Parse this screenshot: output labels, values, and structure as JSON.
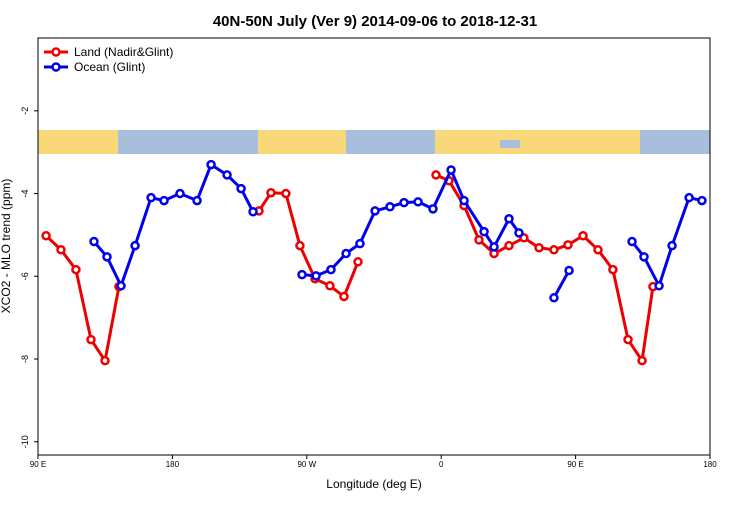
{
  "chart_data": {
    "type": "line",
    "title": "40N-50N July (Ver 9)   2014-09-06 to 2018-12-31",
    "x_label": "Longitude (deg E)",
    "y_label": "XCO2 - MLO trend (ppm)",
    "xlim": [
      90,
      540
    ],
    "xticks": [
      {
        "value": 90,
        "label": "90 E"
      },
      {
        "value": 180,
        "label": "180"
      },
      {
        "value": 270,
        "label": "90 W"
      },
      {
        "value": 360,
        "label": "0"
      },
      {
        "value": 450,
        "label": "90 E"
      },
      {
        "value": 540,
        "label": "180"
      }
    ],
    "ylim": [
      -10.32,
      -0.24
    ],
    "yticks": [
      -2,
      -4,
      -6,
      -8,
      -10
    ],
    "legend": "top-left",
    "series": [
      {
        "name": "Land (Nadir&Glint)",
        "color": "#ee0000",
        "x": [
          95.4,
          105.4,
          115.4,
          125.5,
          134.9,
          144.2,
          null,
          238,
          246,
          256,
          265.4,
          275.5,
          285.5,
          294.9,
          304.3,
          null,
          356.5,
          365.2,
          375.3,
          385.3,
          395.4,
          405.4,
          415.4,
          425.5,
          435.5,
          444.9,
          455,
          465,
          475,
          485.1,
          494.5,
          501.8
        ],
        "values": [
          -5.02,
          -5.36,
          -5.84,
          -7.53,
          -8.04,
          -6.25,
          null,
          -4.42,
          -3.98,
          -4.0,
          -5.26,
          -6.06,
          -6.23,
          -6.49,
          -5.65,
          null,
          -3.55,
          -3.69,
          -4.29,
          -5.12,
          -5.45,
          -5.26,
          -5.07,
          -5.31,
          -5.36,
          -5.24,
          -5.02,
          -5.36,
          -5.84,
          -7.53,
          -8.04,
          -6.25
        ]
      },
      {
        "name": "Ocean (Glint)",
        "color": "#0000ee",
        "x": [
          127.5,
          136.2,
          145.6,
          155,
          165.7,
          174.4,
          185.1,
          196.5,
          205.9,
          216.6,
          226,
          234,
          null,
          266.8,
          276.2,
          286.2,
          296.3,
          305.6,
          315.7,
          325.7,
          335.1,
          344.5,
          354.5,
          366.6,
          375.3,
          388.7,
          395.4,
          405.4,
          412.1,
          null,
          435.5,
          445.6,
          null,
          487.8,
          495.8,
          505.9,
          514.6,
          526,
          534.6
        ],
        "values": [
          -5.16,
          -5.53,
          -6.23,
          -5.26,
          -4.1,
          -4.17,
          -4.0,
          -4.17,
          -3.3,
          -3.55,
          -3.88,
          -4.44,
          null,
          -5.96,
          -5.99,
          -5.84,
          -5.45,
          -5.21,
          -4.42,
          -4.32,
          -4.22,
          -4.2,
          -4.37,
          -3.43,
          -4.17,
          -4.92,
          -5.29,
          -4.61,
          -4.95,
          null,
          -6.52,
          -5.86,
          null,
          -5.16,
          -5.53,
          -6.23,
          -5.26,
          -4.1,
          -4.17
        ]
      }
    ]
  }
}
